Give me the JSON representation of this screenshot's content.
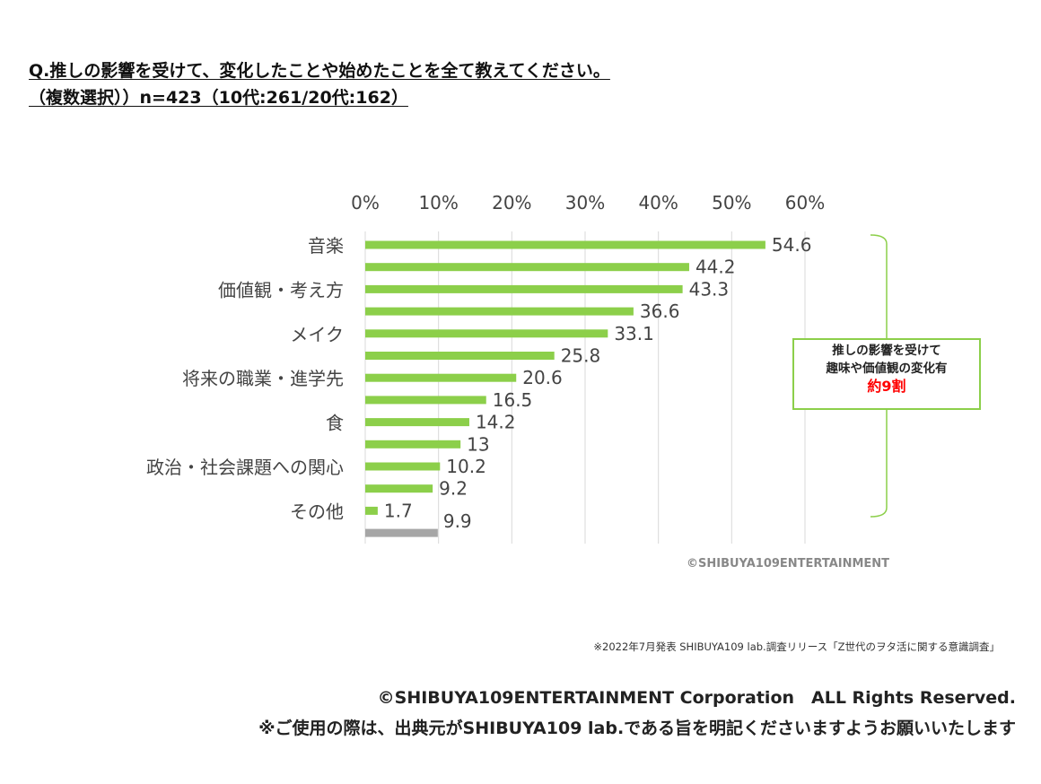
{
  "title_line1": "Q.推しの影響を受けて、変化したことや始めたことを全て教えてください。",
  "title_line2": "（複数選択））n=423（10代:261/20代:162）",
  "callout": {
    "line1": "推しの影響を受けて",
    "line2": "趣味や価値観の変化有",
    "highlight": "約9割"
  },
  "watermark": "©SHIBUYA109ENTERTAINMENT",
  "source_note": "※2022年7月発表 SHIBUYA109 lab.調査リリース「Z世代のヲタ活に関する意識調査」",
  "footer_line1": "©SHIBUYA109ENTERTAINMENT Corporation　ALL Rights Reserved.",
  "footer_line2": "※ご使用の際は、出典元がSHIBUYA109 lab.である旨を明記くださいますようお願いいたします",
  "colors": {
    "bar": "#8ccf4a",
    "last_bar": "#a6a6a6",
    "grid": "#d9d9d9",
    "highlight": "#ff0000"
  },
  "chart_data": {
    "type": "bar",
    "orientation": "horizontal",
    "categories": [
      "音楽",
      "",
      "価値観・考え方",
      "",
      "メイク",
      "",
      "将来の職業・進学先",
      "",
      "食",
      "",
      "政治・社会課題への関心",
      "",
      "その他",
      ""
    ],
    "values": [
      54.6,
      44.2,
      43.3,
      36.6,
      33.1,
      25.8,
      20.6,
      16.5,
      14.2,
      13,
      10.2,
      9.2,
      1.7,
      9.9
    ],
    "value_labels": [
      "54.6",
      "44.2",
      "43.3",
      "36.6",
      "33.1",
      "25.8",
      "20.6",
      "16.5",
      "14.2",
      "13",
      "10.2",
      "9.2",
      "1.7",
      "9.9"
    ],
    "xlim": [
      0,
      60
    ],
    "xticks": [
      "0%",
      "10%",
      "20%",
      "30%",
      "40%",
      "50%",
      "60%"
    ],
    "xaxis_position": "top",
    "grid": true,
    "title": "",
    "xlabel": "",
    "ylabel": ""
  }
}
